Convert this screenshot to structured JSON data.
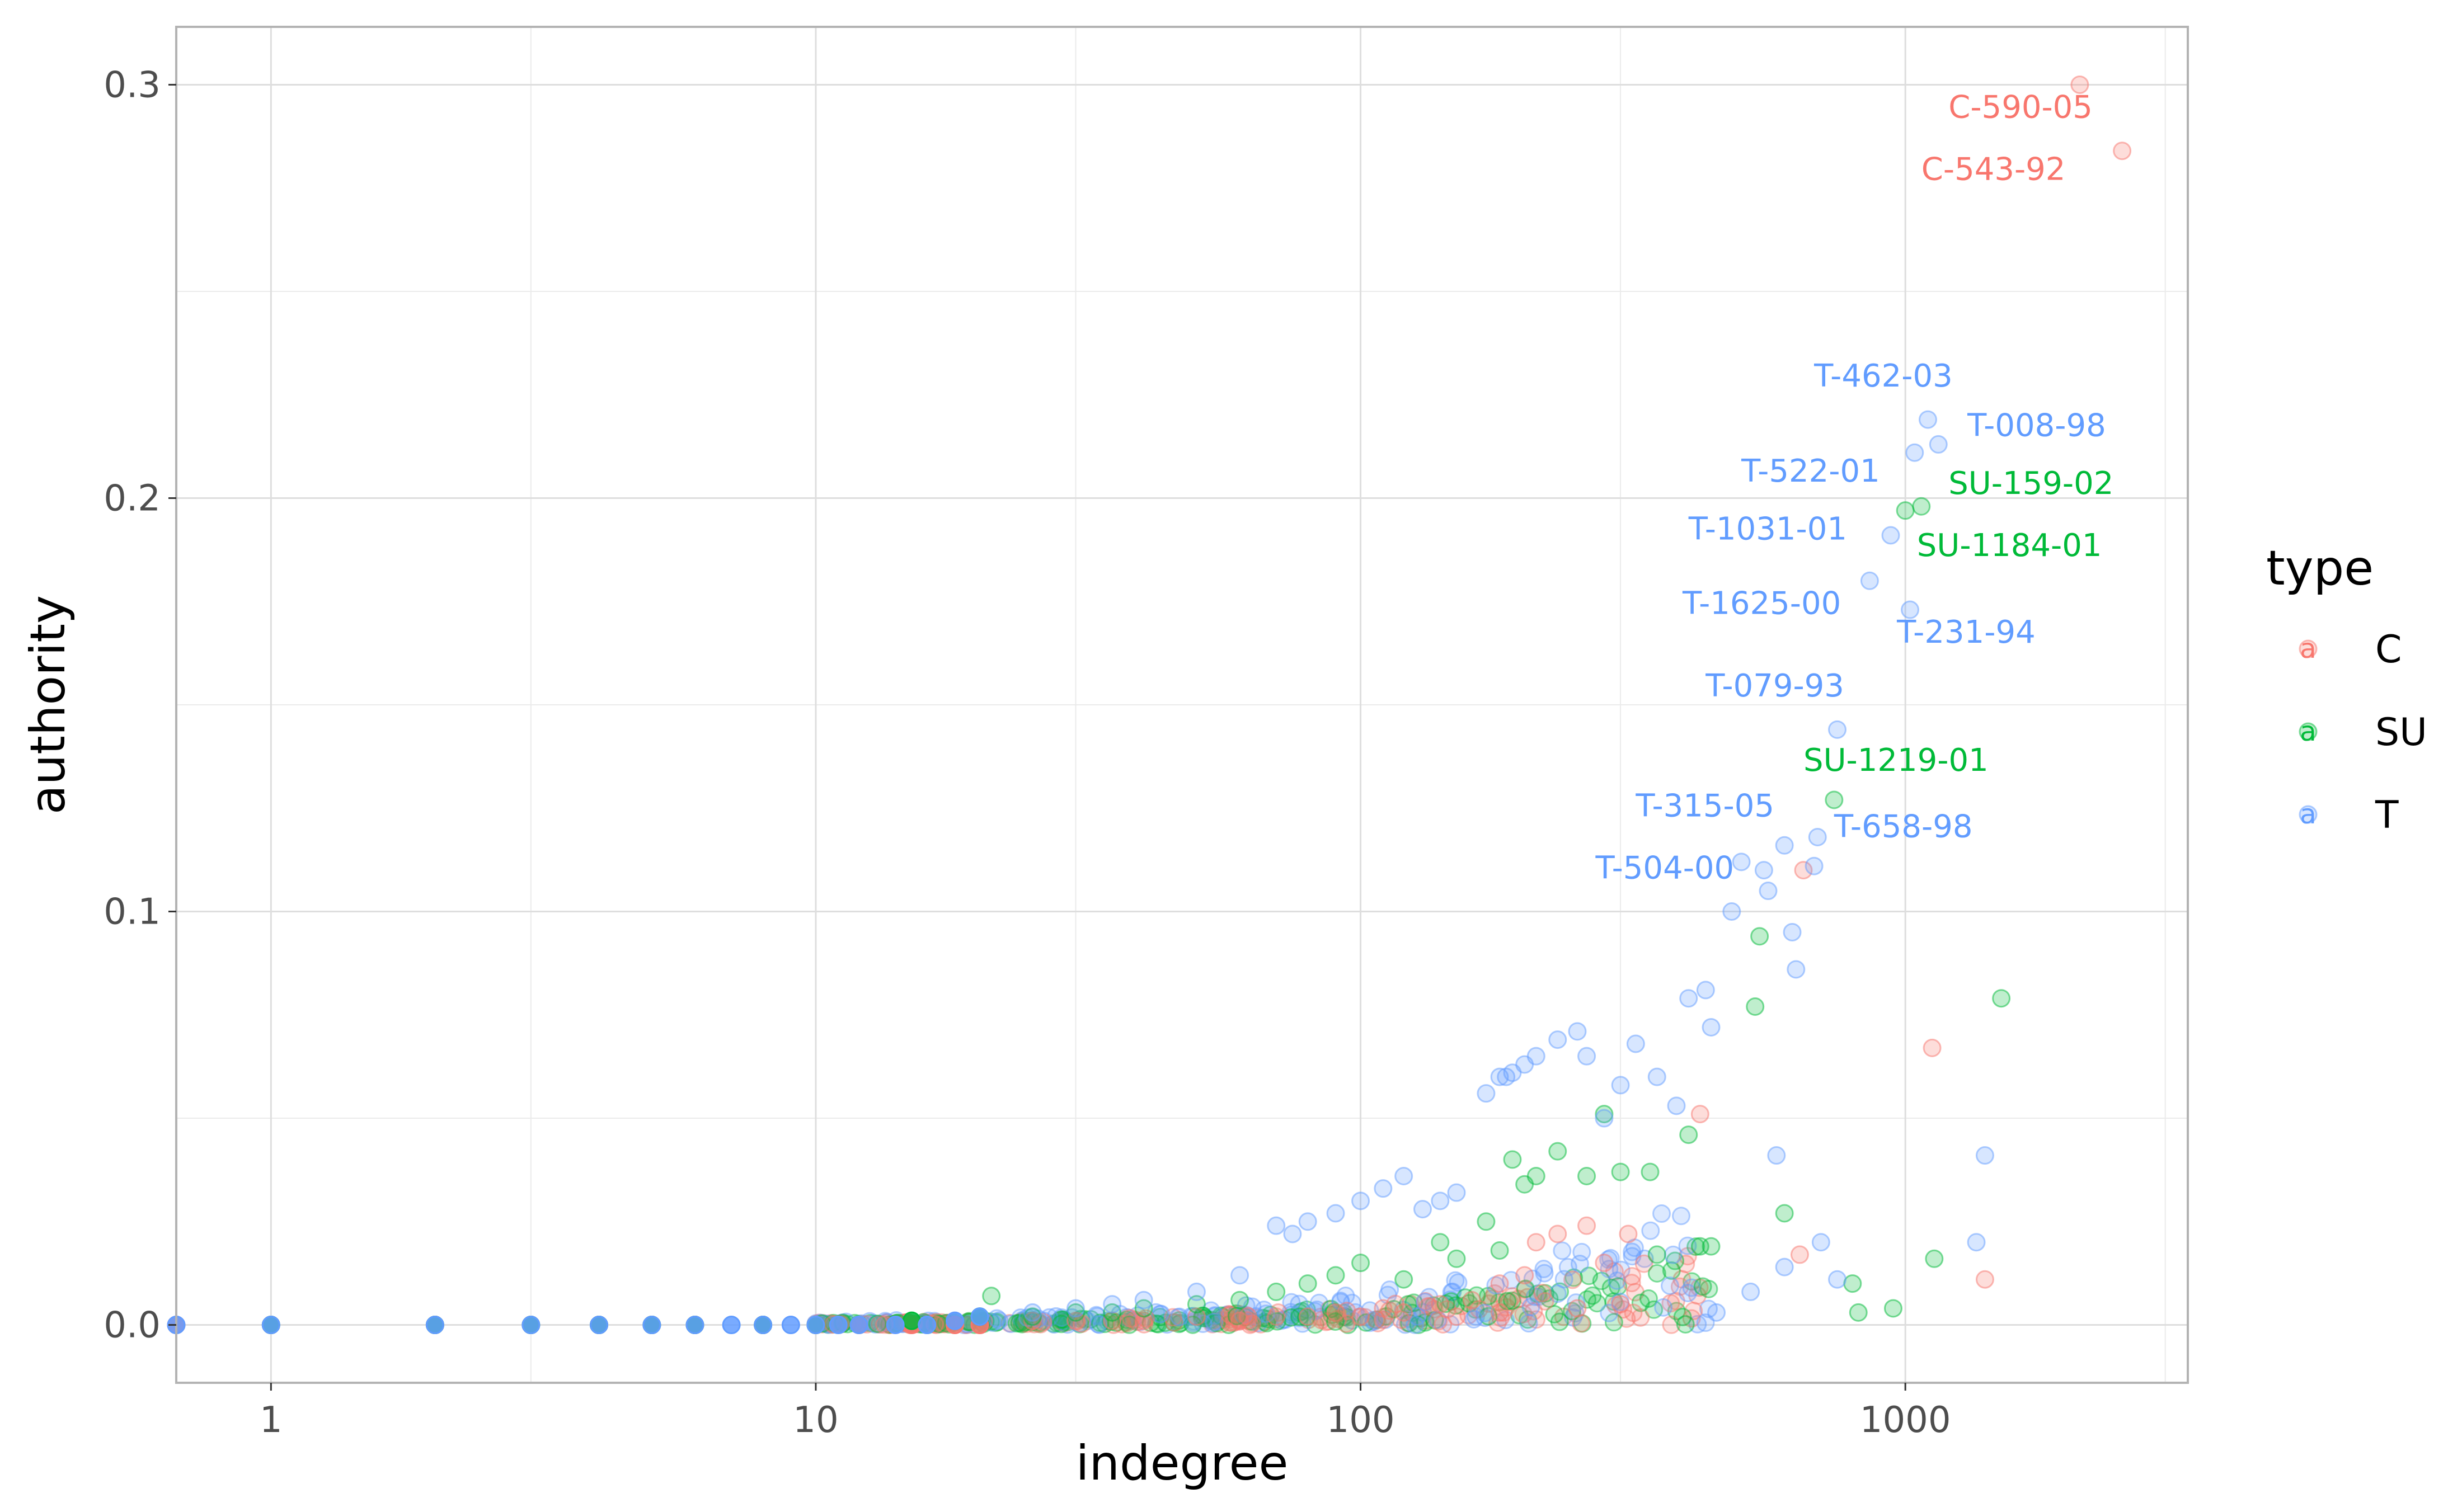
{
  "chart_data": {
    "type": "scatter",
    "title": "",
    "xlabel": "indegree",
    "ylabel": "authority",
    "x_scale": "log10",
    "xlim": [
      0.67,
      3300
    ],
    "ylim": [
      -0.014,
      0.314
    ],
    "x_ticks": [
      1,
      10,
      100,
      1000
    ],
    "x_tick_labels": [
      "1",
      "10",
      "100",
      "1000"
    ],
    "y_ticks": [
      0.0,
      0.1,
      0.2,
      0.3
    ],
    "y_tick_labels": [
      "0.0",
      "0.1",
      "0.2",
      "0.3"
    ],
    "grid": true,
    "legend": {
      "title": "type",
      "position": "right",
      "key_glyph": "a",
      "entries": [
        {
          "label": "C",
          "color": "#F8766D"
        },
        {
          "label": "SU",
          "color": "#00BA38"
        },
        {
          "label": "T",
          "color": "#619CFF"
        }
      ]
    },
    "series": [
      {
        "name": "C",
        "color": "#F8766D",
        "points": [
          [
            0.67,
            0
          ],
          [
            1,
            0
          ],
          [
            2,
            0
          ],
          [
            3,
            0
          ],
          [
            4,
            0
          ],
          [
            5,
            0
          ],
          [
            6,
            0
          ],
          [
            8,
            0
          ],
          [
            10,
            0
          ],
          [
            12,
            0
          ],
          [
            15,
            0
          ],
          [
            18,
            0
          ],
          [
            20,
            0
          ],
          [
            25,
            0.001
          ],
          [
            30,
            0.001
          ],
          [
            35,
            0.001
          ],
          [
            40,
            0.001
          ],
          [
            50,
            0.002
          ],
          [
            60,
            0.001
          ],
          [
            70,
            0.002
          ],
          [
            80,
            0.002
          ],
          [
            90,
            0.003
          ],
          [
            100,
            0.002
          ],
          [
            110,
            0.004
          ],
          [
            120,
            0.003
          ],
          [
            140,
            0.005
          ],
          [
            160,
            0.006
          ],
          [
            180,
            0.01
          ],
          [
            200,
            0.012
          ],
          [
            210,
            0.02
          ],
          [
            230,
            0.022
          ],
          [
            260,
            0.024
          ],
          [
            280,
            0.015
          ],
          [
            310,
            0.022
          ],
          [
            420,
            0.051
          ],
          [
            640,
            0.017
          ],
          [
            650,
            0.11
          ],
          [
            1120,
            0.067
          ],
          [
            1400,
            0.011
          ],
          [
            2090,
            0.3
          ],
          [
            2500,
            0.284
          ],
          [
            150,
            0.002
          ],
          [
            180,
            0.003
          ],
          [
            250,
            0.004
          ],
          [
            300,
            0.005
          ]
        ]
      },
      {
        "name": "SU",
        "color": "#00BA38",
        "points": [
          [
            1,
            0
          ],
          [
            2,
            0
          ],
          [
            3,
            0
          ],
          [
            4,
            0
          ],
          [
            5,
            0
          ],
          [
            6,
            0
          ],
          [
            8,
            0
          ],
          [
            10,
            0
          ],
          [
            15,
            0.001
          ],
          [
            20,
            0.002
          ],
          [
            21,
            0.007
          ],
          [
            25,
            0.002
          ],
          [
            30,
            0.003
          ],
          [
            35,
            0.003
          ],
          [
            40,
            0.004
          ],
          [
            50,
            0.005
          ],
          [
            60,
            0.006
          ],
          [
            70,
            0.008
          ],
          [
            80,
            0.01
          ],
          [
            90,
            0.012
          ],
          [
            100,
            0.015
          ],
          [
            120,
            0.011
          ],
          [
            140,
            0.02
          ],
          [
            150,
            0.016
          ],
          [
            170,
            0.025
          ],
          [
            180,
            0.018
          ],
          [
            190,
            0.04
          ],
          [
            200,
            0.034
          ],
          [
            210,
            0.036
          ],
          [
            230,
            0.042
          ],
          [
            260,
            0.036
          ],
          [
            280,
            0.051
          ],
          [
            300,
            0.037
          ],
          [
            340,
            0.037
          ],
          [
            350,
            0.017
          ],
          [
            400,
            0.046
          ],
          [
            420,
            0.019
          ],
          [
            440,
            0.019
          ],
          [
            530,
            0.077
          ],
          [
            540,
            0.094
          ],
          [
            600,
            0.027
          ],
          [
            740,
            0.127
          ],
          [
            800,
            0.01
          ],
          [
            820,
            0.003
          ],
          [
            950,
            0.004
          ],
          [
            1000,
            0.197
          ],
          [
            1070,
            0.198
          ],
          [
            1130,
            0.016
          ],
          [
            1500,
            0.079
          ]
        ]
      },
      {
        "name": "T",
        "color": "#619CFF",
        "points": [
          [
            0.67,
            0
          ],
          [
            1,
            0
          ],
          [
            2,
            0
          ],
          [
            3,
            0
          ],
          [
            4,
            0
          ],
          [
            5,
            0
          ],
          [
            6,
            0
          ],
          [
            7,
            0
          ],
          [
            8,
            0
          ],
          [
            9,
            0
          ],
          [
            10,
            0
          ],
          [
            11,
            0
          ],
          [
            12,
            0
          ],
          [
            14,
            0
          ],
          [
            16,
            0
          ],
          [
            18,
            0.001
          ],
          [
            20,
            0.002
          ],
          [
            25,
            0.003
          ],
          [
            30,
            0.004
          ],
          [
            35,
            0.005
          ],
          [
            40,
            0.006
          ],
          [
            50,
            0.008
          ],
          [
            60,
            0.012
          ],
          [
            70,
            0.024
          ],
          [
            75,
            0.022
          ],
          [
            80,
            0.025
          ],
          [
            90,
            0.027
          ],
          [
            100,
            0.03
          ],
          [
            110,
            0.033
          ],
          [
            120,
            0.036
          ],
          [
            130,
            0.028
          ],
          [
            140,
            0.03
          ],
          [
            150,
            0.032
          ],
          [
            170,
            0.056
          ],
          [
            180,
            0.06
          ],
          [
            185,
            0.06
          ],
          [
            190,
            0.061
          ],
          [
            200,
            0.063
          ],
          [
            210,
            0.065
          ],
          [
            230,
            0.069
          ],
          [
            250,
            0.071
          ],
          [
            260,
            0.065
          ],
          [
            280,
            0.05
          ],
          [
            300,
            0.058
          ],
          [
            320,
            0.068
          ],
          [
            350,
            0.06
          ],
          [
            380,
            0.053
          ],
          [
            400,
            0.079
          ],
          [
            430,
            0.081
          ],
          [
            440,
            0.072
          ],
          [
            480,
            0.1
          ],
          [
            500,
            0.112
          ],
          [
            550,
            0.11
          ],
          [
            560,
            0.105
          ],
          [
            580,
            0.041
          ],
          [
            600,
            0.116
          ],
          [
            620,
            0.095
          ],
          [
            630,
            0.086
          ],
          [
            680,
            0.111
          ],
          [
            690,
            0.118
          ],
          [
            750,
            0.144
          ],
          [
            860,
            0.18
          ],
          [
            940,
            0.191
          ],
          [
            1020,
            0.173
          ],
          [
            1040,
            0.211
          ],
          [
            1100,
            0.219
          ],
          [
            1150,
            0.213
          ],
          [
            700,
            0.02
          ],
          [
            750,
            0.011
          ],
          [
            1350,
            0.02
          ],
          [
            1400,
            0.041
          ],
          [
            600,
            0.014
          ],
          [
            450,
            0.003
          ],
          [
            520,
            0.008
          ]
        ]
      }
    ],
    "annotations": [
      {
        "text": "C-590-05",
        "series": "C",
        "x": 1200,
        "y": 0.292
      },
      {
        "text": "C-543-92",
        "series": "C",
        "x": 1070,
        "y": 0.277
      },
      {
        "text": "T-462-03",
        "series": "T",
        "x": 680,
        "y": 0.227
      },
      {
        "text": "T-008-98",
        "series": "T",
        "x": 1300,
        "y": 0.215
      },
      {
        "text": "T-522-01",
        "series": "T",
        "x": 500,
        "y": 0.204
      },
      {
        "text": "SU-159-02",
        "series": "SU",
        "x": 1200,
        "y": 0.201
      },
      {
        "text": "T-1031-01",
        "series": "T",
        "x": 400,
        "y": 0.19
      },
      {
        "text": "SU-1184-01",
        "series": "SU",
        "x": 1050,
        "y": 0.186
      },
      {
        "text": "T-1625-00",
        "series": "T",
        "x": 390,
        "y": 0.172
      },
      {
        "text": "T-231-94",
        "series": "T",
        "x": 965,
        "y": 0.165
      },
      {
        "text": "T-079-93",
        "series": "T",
        "x": 430,
        "y": 0.152
      },
      {
        "text": "SU-1219-01",
        "series": "SU",
        "x": 650,
        "y": 0.134
      },
      {
        "text": "T-315-05",
        "series": "T",
        "x": 320,
        "y": 0.123
      },
      {
        "text": "T-658-98",
        "series": "T",
        "x": 740,
        "y": 0.118
      },
      {
        "text": "T-504-00",
        "series": "T",
        "x": 270,
        "y": 0.108
      }
    ]
  }
}
